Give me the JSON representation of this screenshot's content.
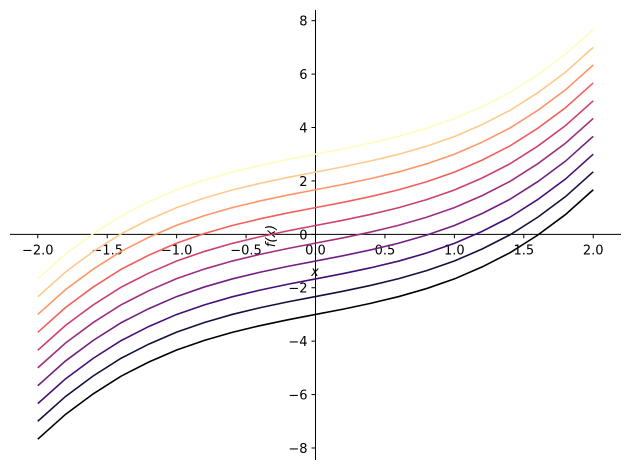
{
  "chart_data": {
    "type": "line",
    "x_label": "x",
    "y_label": "f(x)",
    "x": [
      -2,
      -1.8,
      -1.6,
      -1.4,
      -1.2,
      -1,
      -0.8,
      -0.6,
      -0.4,
      -0.2,
      0,
      0.2,
      0.4,
      0.6,
      0.8,
      1,
      1.2,
      1.4,
      1.6,
      1.8,
      2
    ],
    "series": [
      {
        "color": "#000004",
        "values": [
          -7.67,
          -6.74,
          -5.97,
          -5.31,
          -4.78,
          -4.33,
          -3.97,
          -3.67,
          -3.42,
          -3.2,
          -3,
          -2.8,
          -2.58,
          -2.33,
          -2.03,
          -1.67,
          -1.22,
          -0.69,
          -0.03,
          0.74,
          1.67
        ]
      },
      {
        "color": "#180f3d",
        "values": [
          -7,
          -6.07,
          -5.3,
          -4.64,
          -4.11,
          -3.66,
          -3.3,
          -3,
          -2.75,
          -2.53,
          -2.33,
          -2.13,
          -1.91,
          -1.66,
          -1.36,
          -1,
          -0.55,
          -0.02,
          0.64,
          1.41,
          2.34
        ]
      },
      {
        "color": "#440f76",
        "values": [
          -6.34,
          -5.41,
          -4.64,
          -3.98,
          -3.45,
          -3,
          -2.64,
          -2.34,
          -2.09,
          -1.87,
          -1.67,
          -1.47,
          -1.25,
          -1,
          -0.7,
          -0.34,
          0.11,
          0.64,
          1.3,
          2.07,
          3
        ]
      },
      {
        "color": "#721f81",
        "values": [
          -5.67,
          -4.74,
          -3.97,
          -3.31,
          -2.78,
          -2.33,
          -1.97,
          -1.67,
          -1.42,
          -1.2,
          -1,
          -0.8,
          -0.58,
          -0.33,
          -0.03,
          0.33,
          0.78,
          1.31,
          1.97,
          2.74,
          3.67
        ]
      },
      {
        "color": "#9e2f7f",
        "values": [
          -5,
          -4.07,
          -3.3,
          -2.64,
          -2.11,
          -1.66,
          -1.3,
          -1,
          -0.75,
          -0.53,
          -0.33,
          -0.13,
          0.09,
          0.34,
          0.64,
          1,
          1.45,
          1.98,
          2.64,
          3.41,
          4.34
        ]
      },
      {
        "color": "#cd4071",
        "values": [
          -4.34,
          -3.41,
          -2.64,
          -1.98,
          -1.45,
          -1,
          -0.64,
          -0.34,
          -0.09,
          0.13,
          0.33,
          0.53,
          0.75,
          1,
          1.3,
          1.66,
          2.11,
          2.64,
          3.3,
          4.07,
          5
        ]
      },
      {
        "color": "#f1605d",
        "values": [
          -3.67,
          -2.74,
          -1.97,
          -1.31,
          -0.78,
          -0.33,
          0.03,
          0.33,
          0.58,
          0.8,
          1,
          1.2,
          1.42,
          1.67,
          1.97,
          2.33,
          2.78,
          3.31,
          3.97,
          4.74,
          5.67
        ]
      },
      {
        "color": "#fd9668",
        "values": [
          -3,
          -2.07,
          -1.3,
          -0.64,
          -0.11,
          0.34,
          0.7,
          1,
          1.25,
          1.47,
          1.67,
          1.87,
          2.09,
          2.34,
          2.64,
          3,
          3.45,
          3.98,
          4.64,
          5.41,
          6.34
        ]
      },
      {
        "color": "#feca8d",
        "values": [
          -2.34,
          -1.41,
          -0.64,
          0.02,
          0.55,
          1,
          1.36,
          1.66,
          1.91,
          2.13,
          2.33,
          2.53,
          2.75,
          3,
          3.3,
          3.66,
          4.11,
          4.64,
          5.3,
          6.07,
          7
        ]
      },
      {
        "color": "#fcfdbf",
        "values": [
          -1.67,
          -0.74,
          0.03,
          0.69,
          1.22,
          1.67,
          2.03,
          2.33,
          2.58,
          2.8,
          3,
          3.2,
          3.42,
          3.67,
          3.97,
          4.33,
          4.78,
          5.31,
          5.97,
          6.74,
          7.67
        ]
      }
    ],
    "xlim": [
      -2.2,
      2.2
    ],
    "ylim": [
      -8.45,
      8.4
    ],
    "xticks": [
      {
        "value": -2,
        "label": "−2.0"
      },
      {
        "value": -1.5,
        "label": "−1.5"
      },
      {
        "value": -1,
        "label": "−1.0"
      },
      {
        "value": -0.5,
        "label": "−0.5"
      },
      {
        "value": 0,
        "label": "0.0"
      },
      0.5,
      {
        "value": 1,
        "label": "1.0"
      },
      1.5,
      {
        "value": 2,
        "label": "2.0"
      }
    ],
    "yticks": [
      {
        "value": -8,
        "label": "−8"
      },
      {
        "value": -6,
        "label": "−6"
      },
      {
        "value": -4,
        "label": "−4"
      },
      {
        "value": -2,
        "label": "−2"
      },
      0,
      2,
      4,
      6,
      8
    ]
  }
}
